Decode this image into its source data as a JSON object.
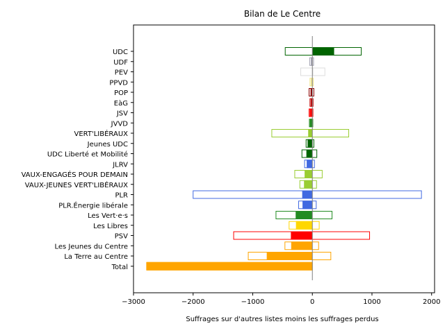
{
  "chart_data": {
    "type": "bar",
    "orientation": "horizontal",
    "title": "Bilan de Le Centre",
    "xlabel": "Suffrages sur d'autres listes moins les suffrages perdus",
    "ylabel": "",
    "xlim": [
      -3000,
      2050
    ],
    "xticks": [
      -3000,
      -2000,
      -1000,
      0,
      1000,
      2000
    ],
    "grid": false,
    "legend": "none",
    "categories": [
      "UDC",
      "UDF",
      "PEV",
      "PPVD",
      "POP",
      "EàG",
      "JSV",
      "JVVD",
      "VERT'LIBÉRAUX",
      "Jeunes UDC",
      "UDC Liberté et Mobilité",
      "JLRV",
      "VAUX-ENGAGÉS POUR DEMAIN",
      "VAUX-JEUNES VERT'LIBÉRAUX",
      "PLR",
      "PLR.Énergie libérale",
      "Les Vert·e·s",
      "Les Libres",
      "PSV",
      "Les Jeunes du Centre",
      "La Terre au Centre",
      "Total"
    ],
    "series": [
      {
        "role": "gained",
        "values": [
          820,
          20,
          210,
          15,
          25,
          12,
          10,
          8,
          610,
          25,
          75,
          35,
          165,
          70,
          1830,
          65,
          330,
          115,
          960,
          105,
          310,
          0
        ]
      },
      {
        "role": "lost",
        "values": [
          -455,
          -45,
          -195,
          -40,
          -55,
          -40,
          -55,
          -50,
          -680,
          -105,
          -175,
          -130,
          -295,
          -210,
          -2000,
          -230,
          -610,
          -390,
          -1320,
          -460,
          -1075,
          -2780
        ]
      },
      {
        "role": "net",
        "values": [
          365,
          -25,
          15,
          -25,
          -30,
          -28,
          -45,
          -42,
          -70,
          -80,
          -100,
          -95,
          -130,
          -140,
          -170,
          -165,
          -280,
          -275,
          -360,
          -355,
          -765,
          -2780
        ]
      }
    ],
    "colors": [
      "#006400",
      "#a0a0b0",
      "#dddddd",
      "#f0e68c",
      "#8b0000",
      "#c00000",
      "#ff0000",
      "#228b22",
      "#9acd32",
      "#006400",
      "#006400",
      "#4169e1",
      "#9acd32",
      "#9acd32",
      "#4169e1",
      "#4169e1",
      "#228b22",
      "#ffd700",
      "#ff0000",
      "#ffa500",
      "#ffa500",
      "#ffa500"
    ],
    "zero_line_color": "#808080"
  }
}
